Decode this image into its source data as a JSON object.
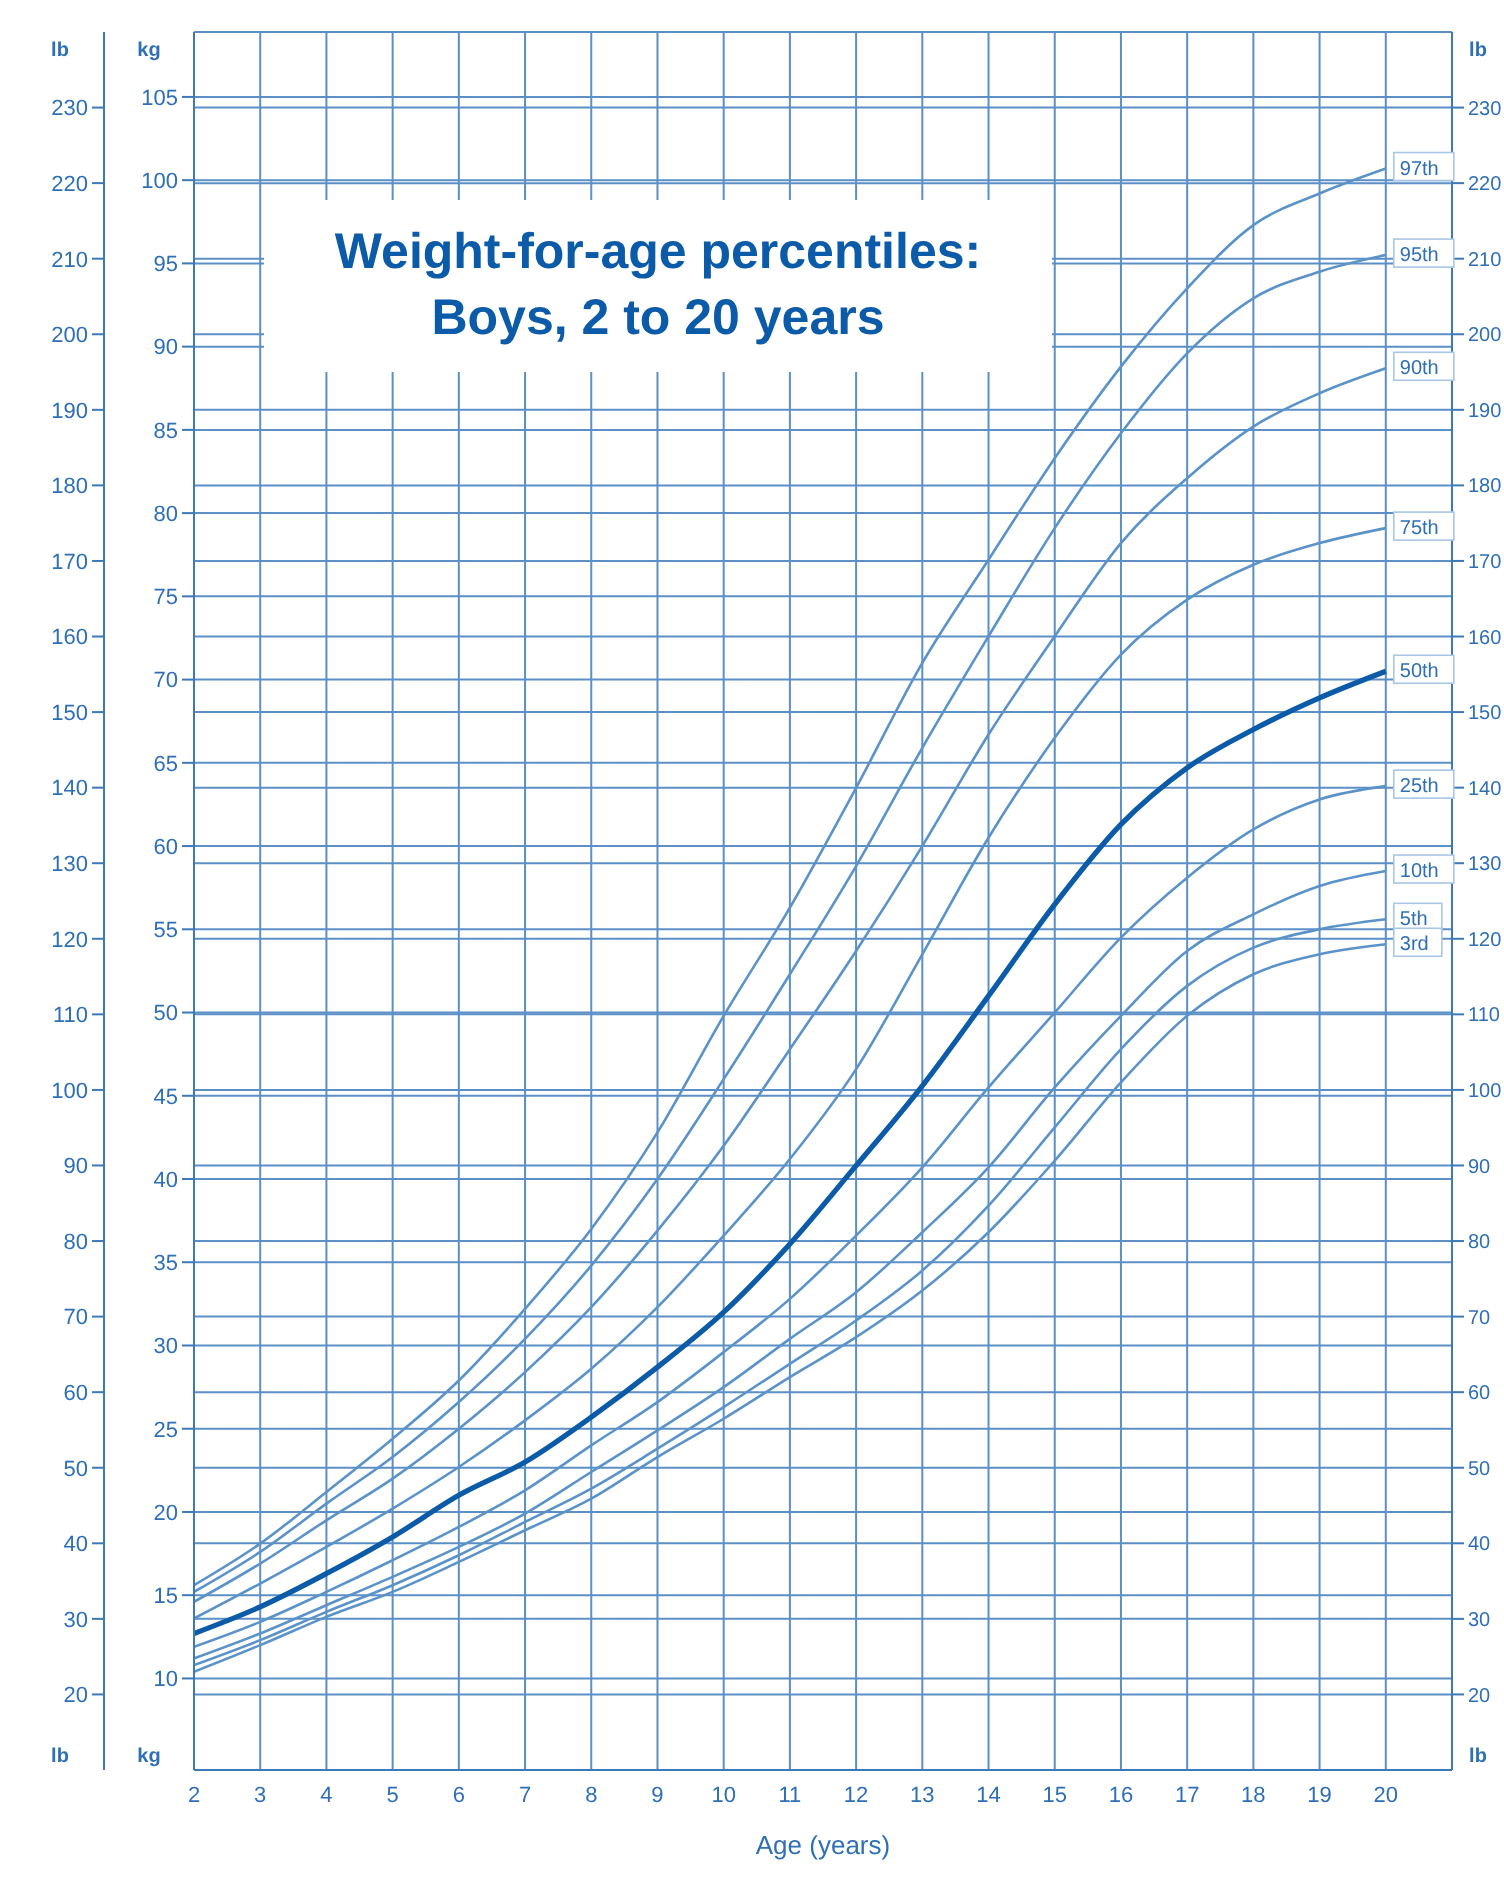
{
  "chart_data": {
    "type": "line",
    "title": "Weight-for-age percentiles: Boys, 2 to 20 years",
    "xlabel": "Age (years)",
    "ylabel": "kg",
    "y2label": "lb",
    "y3label": "lb",
    "x": [
      2,
      3,
      4,
      5,
      6,
      7,
      8,
      9,
      10,
      11,
      12,
      13,
      14,
      15,
      16,
      17,
      18,
      19,
      20
    ],
    "series": [
      {
        "name": "97th",
        "color": "#5b93c9",
        "values": [
          15.6,
          18.1,
          21.2,
          24.4,
          27.9,
          32.2,
          37.0,
          42.8,
          49.8,
          56.3,
          63.5,
          71.0,
          77.2,
          83.3,
          88.8,
          93.5,
          97.3,
          99.2,
          100.7
        ]
      },
      {
        "name": "95th",
        "color": "#5b93c9",
        "values": [
          15.2,
          17.6,
          20.5,
          23.3,
          26.6,
          30.4,
          34.8,
          40.0,
          46.0,
          52.3,
          58.8,
          65.9,
          72.6,
          79.1,
          84.8,
          89.6,
          92.9,
          94.5,
          95.5
        ]
      },
      {
        "name": "90th",
        "color": "#5b93c9",
        "values": [
          14.6,
          16.9,
          19.5,
          22.0,
          25.0,
          28.4,
          32.3,
          36.9,
          42.0,
          47.8,
          53.7,
          60.0,
          66.7,
          72.6,
          78.2,
          82.1,
          85.2,
          87.2,
          88.7
        ]
      },
      {
        "name": "75th",
        "color": "#5b93c9",
        "values": [
          13.6,
          15.7,
          17.9,
          20.2,
          22.7,
          25.5,
          28.6,
          32.3,
          36.6,
          41.2,
          46.6,
          53.5,
          60.5,
          66.5,
          71.5,
          74.8,
          76.9,
          78.2,
          79.1
        ]
      },
      {
        "name": "50th",
        "color": "#0b5ba8",
        "values": [
          12.7,
          14.3,
          16.3,
          18.5,
          21.0,
          23.0,
          25.7,
          28.7,
          32.0,
          36.1,
          40.8,
          45.6,
          51.0,
          56.5,
          61.3,
          64.7,
          67.0,
          68.9,
          70.5
        ]
      },
      {
        "name": "25th",
        "color": "#5b93c9",
        "values": [
          11.9,
          13.4,
          15.2,
          17.1,
          19.1,
          21.3,
          24.0,
          26.6,
          29.6,
          32.8,
          36.6,
          40.7,
          45.5,
          50.0,
          54.5,
          58.1,
          61.0,
          62.8,
          63.6
        ]
      },
      {
        "name": "10th",
        "color": "#5b93c9",
        "values": [
          11.2,
          12.7,
          14.4,
          16.1,
          17.9,
          19.9,
          22.4,
          24.9,
          27.5,
          30.4,
          33.2,
          36.8,
          40.7,
          45.5,
          49.8,
          53.7,
          55.9,
          57.6,
          58.5
        ]
      },
      {
        "name": "5th",
        "color": "#5b93c9",
        "values": [
          10.8,
          12.3,
          14.0,
          15.6,
          17.4,
          19.4,
          21.4,
          23.8,
          26.3,
          28.9,
          31.5,
          34.5,
          38.4,
          43.1,
          47.8,
          51.6,
          53.9,
          55.0,
          55.6
        ]
      },
      {
        "name": "3rd",
        "color": "#5b93c9",
        "values": [
          10.4,
          12.0,
          13.7,
          15.2,
          17.0,
          18.9,
          20.8,
          23.3,
          25.6,
          28.1,
          30.5,
          33.3,
          36.8,
          41.1,
          45.8,
          49.8,
          52.3,
          53.5,
          54.1
        ]
      }
    ],
    "xlim": [
      2,
      21
    ],
    "xticks": [
      2,
      3,
      4,
      5,
      6,
      7,
      8,
      9,
      10,
      11,
      12,
      13,
      14,
      15,
      16,
      17,
      18,
      19,
      20
    ],
    "ylim": [
      4.5,
      108.9
    ],
    "yticks": [
      10,
      15,
      20,
      25,
      30,
      35,
      40,
      45,
      50,
      55,
      60,
      65,
      70,
      75,
      80,
      85,
      90,
      95,
      100,
      105
    ],
    "y2lim": [
      10,
      240
    ],
    "y2ticks": [
      20,
      30,
      40,
      50,
      60,
      70,
      80,
      90,
      100,
      110,
      120,
      130,
      140,
      150,
      160,
      170,
      180,
      190,
      200,
      210,
      220,
      230
    ],
    "y3lim": [
      10,
      240
    ],
    "y3ticks": [
      20,
      30,
      40,
      50,
      60,
      70,
      80,
      90,
      100,
      110,
      120,
      130,
      140,
      150,
      160,
      170,
      180,
      190,
      200,
      210,
      220,
      230
    ],
    "grid": true,
    "legend": false,
    "marker": "none",
    "line_style": "solid"
  }
}
